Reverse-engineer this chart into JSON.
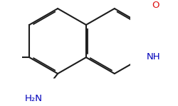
{
  "bg": "#ffffff",
  "bc": "#1c1c1c",
  "lw": 1.5,
  "O_color": "#dd1111",
  "N_color": "#0000bb",
  "fs": 9.5,
  "dbo": 0.045,
  "xlim": [
    -1.95,
    1.35
  ],
  "ylim": [
    -1.15,
    1.05
  ]
}
